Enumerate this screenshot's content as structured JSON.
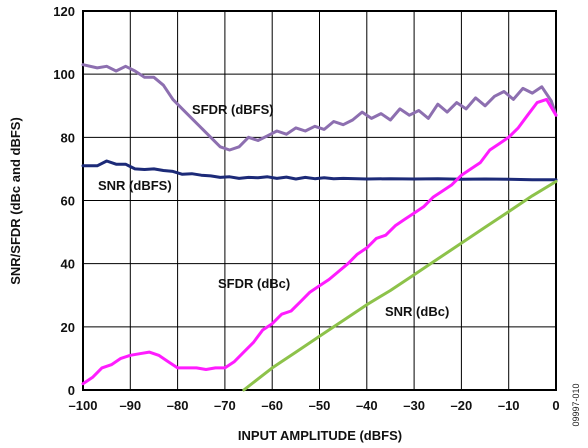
{
  "chart_data": {
    "type": "line",
    "title": "",
    "xlabel": "INPUT AMPLITUDE (dBFS)",
    "ylabel": "SNR/SFDR (dBc and dBFS)",
    "xlim": [
      -100,
      0
    ],
    "ylim": [
      0,
      120
    ],
    "x_ticks": [
      -100,
      -90,
      -80,
      -70,
      -60,
      -50,
      -40,
      -30,
      -20,
      -10,
      0
    ],
    "x_tick_labels": [
      "–100",
      "–90",
      "–80",
      "–70",
      "–60",
      "–50",
      "–40",
      "–30",
      "–20",
      "–10",
      "0"
    ],
    "y_ticks": [
      0,
      20,
      40,
      60,
      80,
      100,
      120
    ],
    "y_tick_labels": [
      "0",
      "20",
      "40",
      "60",
      "80",
      "100",
      "120"
    ],
    "grid": true,
    "legend": "inline labels",
    "figure_id": "09997-010",
    "series": [
      {
        "name": "SFDR (dBFS)",
        "color": "#8d6fb0",
        "x": [
          -100,
          -97,
          -95,
          -93,
          -91,
          -89,
          -87,
          -85,
          -83,
          -81,
          -79,
          -77,
          -75,
          -73,
          -71,
          -69,
          -67,
          -65,
          -63,
          -61,
          -59,
          -57,
          -55,
          -53,
          -51,
          -49,
          -47,
          -45,
          -43,
          -41,
          -39,
          -37,
          -35,
          -33,
          -31,
          -29,
          -27,
          -25,
          -23,
          -21,
          -19,
          -17,
          -15,
          -13,
          -11,
          -9,
          -7,
          -5,
          -3,
          -1,
          0
        ],
        "y": [
          103,
          102,
          102.5,
          101,
          102.5,
          101,
          99,
          99,
          96.5,
          92,
          89,
          86,
          83,
          80,
          77,
          76,
          77,
          80,
          79,
          80.5,
          82,
          81,
          83,
          82,
          83.5,
          82.5,
          85,
          84,
          85.5,
          88,
          86,
          87.5,
          85.5,
          89,
          87,
          88.5,
          86,
          90.5,
          88,
          91,
          89,
          92.5,
          90,
          93,
          94.5,
          92,
          95.5,
          94,
          96,
          91.5,
          87
        ]
      },
      {
        "name": "SNR (dBFS)",
        "color": "#1c2a78",
        "x": [
          -100,
          -97,
          -95,
          -93,
          -91,
          -89,
          -87,
          -85,
          -83,
          -81,
          -79,
          -77,
          -75,
          -73,
          -71,
          -69,
          -67,
          -65,
          -63,
          -61,
          -59,
          -57,
          -55,
          -53,
          -51,
          -49,
          -47,
          -45,
          -40,
          -35,
          -30,
          -25,
          -20,
          -15,
          -10,
          -5,
          0
        ],
        "y": [
          71,
          71,
          72.5,
          71.5,
          71.5,
          70,
          69.8,
          70,
          69.5,
          69.2,
          68.3,
          68.5,
          68,
          67.8,
          67.3,
          67.5,
          67,
          67.3,
          67.2,
          67.5,
          67,
          67.4,
          66.8,
          67.3,
          66.9,
          67.2,
          66.9,
          67,
          66.8,
          66.9,
          66.8,
          66.9,
          66.7,
          66.8,
          66.7,
          66.6,
          66.6
        ]
      },
      {
        "name": "SFDR (dBc)",
        "color": "#ff1cff",
        "x": [
          -100,
          -98,
          -96,
          -94,
          -92,
          -90,
          -88,
          -86,
          -84,
          -82,
          -80,
          -78,
          -76,
          -74,
          -72,
          -70,
          -68,
          -66,
          -64,
          -62,
          -60,
          -58,
          -56,
          -54,
          -52,
          -50,
          -48,
          -46,
          -44,
          -42,
          -40,
          -38,
          -36,
          -34,
          -32,
          -30,
          -28,
          -26,
          -24,
          -22,
          -20,
          -18,
          -16,
          -14,
          -12,
          -10,
          -8,
          -6,
          -4,
          -2,
          0
        ],
        "y": [
          2,
          4,
          7,
          8,
          10,
          11,
          11.5,
          12,
          11,
          9,
          7,
          7,
          7,
          6.5,
          7,
          7,
          9,
          12,
          15,
          19,
          21,
          24,
          25,
          28,
          31,
          33,
          35,
          37.5,
          40,
          43,
          45,
          48,
          49,
          52,
          54,
          56,
          58,
          61,
          63,
          65,
          68,
          70,
          72,
          76,
          78,
          80,
          83,
          87,
          91,
          92,
          87
        ]
      },
      {
        "name": "SNR (dBc)",
        "color": "#8dc24a",
        "x": [
          -66,
          -60,
          -55,
          -50,
          -45,
          -40,
          -35,
          -30,
          -25,
          -20,
          -15,
          -10,
          -5,
          0
        ],
        "y": [
          0,
          7,
          12,
          17,
          22,
          27,
          31.5,
          36.5,
          41.5,
          46.5,
          51.5,
          56.5,
          61.5,
          66
        ]
      }
    ]
  }
}
